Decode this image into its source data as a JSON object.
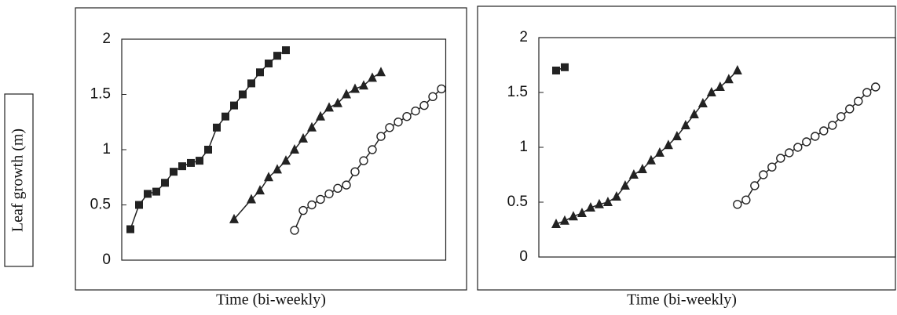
{
  "chart_data": [
    {
      "type": "line",
      "ylabel": "Leaf growth (m)",
      "xlabel": "Time (bi-weekly)",
      "xlim": [
        0,
        37.5
      ],
      "ylim": [
        0,
        2
      ],
      "yticks": [
        0,
        0.5,
        1,
        1.5,
        2
      ],
      "series": [
        {
          "marker": "square",
          "color": "#222",
          "x": [
            1,
            2,
            3,
            4,
            5,
            6,
            7,
            8,
            9,
            10,
            11,
            12,
            13,
            14,
            15,
            16,
            17,
            18,
            19
          ],
          "values": [
            0.28,
            0.5,
            0.6,
            0.62,
            0.7,
            0.8,
            0.85,
            0.88,
            0.9,
            1.0,
            1.2,
            1.3,
            1.4,
            1.5,
            1.6,
            1.7,
            1.78,
            1.85,
            1.9
          ]
        },
        {
          "marker": "triangle",
          "color": "#222",
          "x": [
            13,
            15,
            16,
            17,
            18,
            19,
            20,
            21,
            22,
            23,
            24,
            25,
            26,
            27,
            28,
            29,
            30
          ],
          "values": [
            0.37,
            0.55,
            0.63,
            0.75,
            0.82,
            0.9,
            1.0,
            1.1,
            1.2,
            1.3,
            1.38,
            1.42,
            1.5,
            1.55,
            1.58,
            1.65,
            1.7
          ]
        },
        {
          "marker": "circle",
          "color": "#222",
          "x": [
            20,
            21,
            22,
            23,
            24,
            25,
            26,
            27,
            28,
            29,
            30,
            31,
            32,
            33,
            34,
            35,
            36,
            37
          ],
          "values": [
            0.27,
            0.45,
            0.5,
            0.55,
            0.6,
            0.65,
            0.68,
            0.8,
            0.9,
            1.0,
            1.12,
            1.2,
            1.25,
            1.3,
            1.35,
            1.4,
            1.48,
            1.55
          ]
        }
      ]
    },
    {
      "type": "line",
      "xlabel": "Time (bi-weekly)",
      "xlim": [
        0,
        41.3
      ],
      "ylim": [
        0,
        2
      ],
      "yticks": [
        0,
        0.5,
        1,
        1.5,
        2
      ],
      "series": [
        {
          "marker": "square",
          "color": "#222",
          "x": [
            2,
            3
          ],
          "values": [
            1.7,
            1.73
          ]
        },
        {
          "marker": "triangle",
          "color": "#222",
          "x": [
            2,
            3,
            4,
            5,
            6,
            7,
            8,
            9,
            10,
            11,
            12,
            13,
            14,
            15,
            16,
            17,
            18,
            19,
            20,
            21,
            22,
            23
          ],
          "values": [
            0.3,
            0.33,
            0.37,
            0.4,
            0.45,
            0.48,
            0.5,
            0.55,
            0.65,
            0.75,
            0.8,
            0.88,
            0.95,
            1.02,
            1.1,
            1.2,
            1.3,
            1.4,
            1.5,
            1.55,
            1.62,
            1.7
          ]
        },
        {
          "marker": "circle",
          "color": "#222",
          "x": [
            23,
            24,
            25,
            26,
            27,
            28,
            29,
            30,
            31,
            32,
            33,
            34,
            35,
            36,
            37,
            38,
            39
          ],
          "values": [
            0.48,
            0.52,
            0.65,
            0.75,
            0.82,
            0.9,
            0.95,
            1.0,
            1.05,
            1.1,
            1.15,
            1.2,
            1.28,
            1.35,
            1.42,
            1.5,
            1.55
          ]
        }
      ]
    }
  ]
}
